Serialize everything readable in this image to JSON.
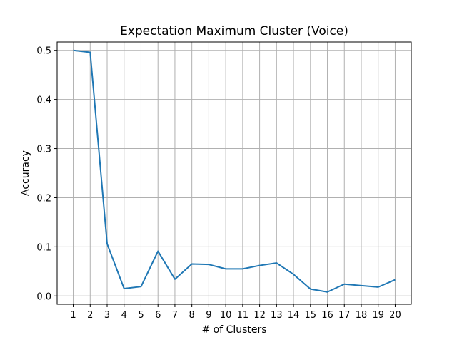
{
  "chart_data": {
    "type": "line",
    "title": "Expectation Maximum Cluster (Voice)",
    "xlabel": "# of Clusters",
    "ylabel": "Accuracy",
    "x": [
      1,
      2,
      3,
      4,
      5,
      6,
      7,
      8,
      9,
      10,
      11,
      12,
      13,
      14,
      15,
      16,
      17,
      18,
      19,
      20
    ],
    "series": [
      {
        "values": [
          0.5,
          0.496,
          0.106,
          0.015,
          0.019,
          0.091,
          0.034,
          0.065,
          0.064,
          0.055,
          0.055,
          0.062,
          0.067,
          0.044,
          0.014,
          0.008,
          0.024,
          0.021,
          0.018,
          0.033
        ],
        "color": "#1f77b4"
      }
    ],
    "xlim": [
      0.05,
      20.95
    ],
    "ylim": [
      -0.017,
      0.517
    ],
    "yticks": [
      0.0,
      0.1,
      0.2,
      0.3,
      0.4,
      0.5
    ],
    "ytick_labels": [
      "0.0",
      "0.1",
      "0.2",
      "0.3",
      "0.4",
      "0.5"
    ],
    "xtick_labels": [
      "1",
      "2",
      "3",
      "4",
      "5",
      "6",
      "7",
      "8",
      "9",
      "10",
      "11",
      "12",
      "13",
      "14",
      "15",
      "16",
      "17",
      "18",
      "19",
      "20"
    ],
    "grid": true,
    "legend": "none"
  }
}
